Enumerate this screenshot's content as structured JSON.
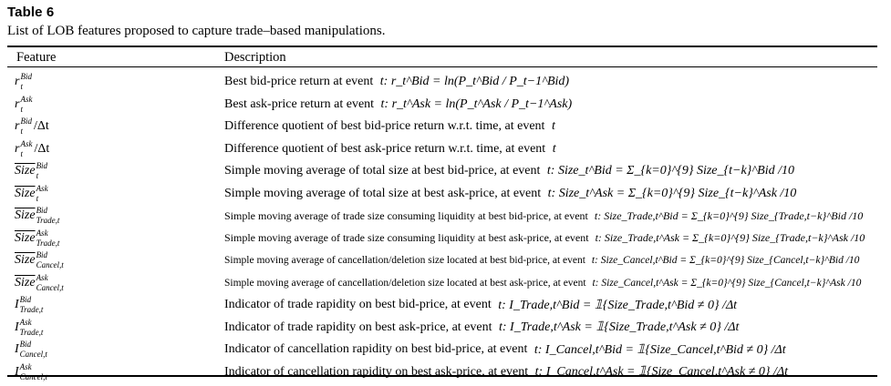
{
  "table_label": "Table 6",
  "caption": "List of LOB features proposed to capture trade–based manipulations.",
  "headers": {
    "feature": "Feature",
    "description": "Description"
  },
  "rows": [
    {
      "f_base": "r",
      "f_over": false,
      "f_sup": "Bid",
      "f_sub": "t",
      "f_suffix": "",
      "desc": "Best bid-price return at event ",
      "math": "t: r_t^Bid = ln(P_t^Bid / P_t−1^Bid)"
    },
    {
      "f_base": "r",
      "f_over": false,
      "f_sup": "Ask",
      "f_sub": "t",
      "f_suffix": "",
      "desc": "Best ask-price return at event ",
      "math": "t: r_t^Ask = ln(P_t^Ask / P_t−1^Ask)"
    },
    {
      "f_base": "r",
      "f_over": false,
      "f_sup": "Bid",
      "f_sub": "t",
      "f_suffix": "/Δt",
      "desc": "Difference quotient of best bid-price return w.r.t. time, at event ",
      "math": "t"
    },
    {
      "f_base": "r",
      "f_over": false,
      "f_sup": "Ask",
      "f_sub": "t",
      "f_suffix": "/Δt",
      "desc": "Difference quotient of best ask-price return w.r.t. time, at event ",
      "math": "t"
    },
    {
      "f_base": "Size",
      "f_over": true,
      "f_sup": "Bid",
      "f_sub": "t",
      "f_suffix": "",
      "desc": "Simple moving average of total size at best bid-price, at event ",
      "math": "t: Size_t^Bid = Σ_{k=0}^{9} Size_{t−k}^Bid /10"
    },
    {
      "f_base": "Size",
      "f_over": true,
      "f_sup": "Ask",
      "f_sub": "t",
      "f_suffix": "",
      "desc": "Simple moving average of total size at best ask-price, at event ",
      "math": "t: Size_t^Ask = Σ_{k=0}^{9} Size_{t−k}^Ask /10"
    },
    {
      "f_base": "Size",
      "f_over": true,
      "f_sup": "Bid",
      "f_sub": "Trade,t",
      "f_suffix": "",
      "desc": "Simple moving average of trade size consuming liquidity at best bid-price, at event ",
      "math": "t: Size_Trade,t^Bid = Σ_{k=0}^{9} Size_{Trade,t−k}^Bid /10"
    },
    {
      "f_base": "Size",
      "f_over": true,
      "f_sup": "Ask",
      "f_sub": "Trade,t",
      "f_suffix": "",
      "desc": "Simple moving average of trade size consuming liquidity at best ask-price, at event ",
      "math": "t: Size_Trade,t^Ask = Σ_{k=0}^{9} Size_{Trade,t−k}^Ask /10"
    },
    {
      "f_base": "Size",
      "f_over": true,
      "f_sup": "Bid",
      "f_sub": "Cancel,t",
      "f_suffix": "",
      "desc": "Simple moving average of cancellation/deletion size located at best bid-price, at event ",
      "math": "t: Size_Cancel,t^Bid = Σ_{k=0}^{9} Size_{Cancel,t−k}^Bid /10"
    },
    {
      "f_base": "Size",
      "f_over": true,
      "f_sup": "Ask",
      "f_sub": "Cancel,t",
      "f_suffix": "",
      "desc": "Simple moving average of cancellation/deletion size located at best ask-price, at event ",
      "math": "t: Size_Cancel,t^Ask = Σ_{k=0}^{9} Size_{Cancel,t−k}^Ask /10"
    },
    {
      "f_base": "I",
      "f_over": false,
      "f_sup": "Bid",
      "f_sub": "Trade,t",
      "f_suffix": "",
      "desc": "Indicator of trade rapidity on best bid-price, at event ",
      "math": "t: I_Trade,t^Bid = 𝟙{Size_Trade,t^Bid ≠ 0} /Δt"
    },
    {
      "f_base": "I",
      "f_over": false,
      "f_sup": "Ask",
      "f_sub": "Trade,t",
      "f_suffix": "",
      "desc": "Indicator of trade rapidity on best ask-price, at event ",
      "math": "t: I_Trade,t^Ask = 𝟙{Size_Trade,t^Ask ≠ 0} /Δt"
    },
    {
      "f_base": "I",
      "f_over": false,
      "f_sup": "Bid",
      "f_sub": "Cancel,t",
      "f_suffix": "",
      "desc": "Indicator of cancellation rapidity on best bid-price, at event ",
      "math": "t: I_Cancel,t^Bid = 𝟙{Size_Cancel,t^Bid ≠ 0} /Δt"
    },
    {
      "f_base": "I",
      "f_over": false,
      "f_sup": "Ask",
      "f_sub": "Cancel,t",
      "f_suffix": "",
      "desc": "Indicator of cancellation rapidity on best ask-price, at event ",
      "math": "t: I_Cancel,t^Ask = 𝟙{Size_Cancel,t^Ask ≠ 0} /Δt"
    }
  ]
}
